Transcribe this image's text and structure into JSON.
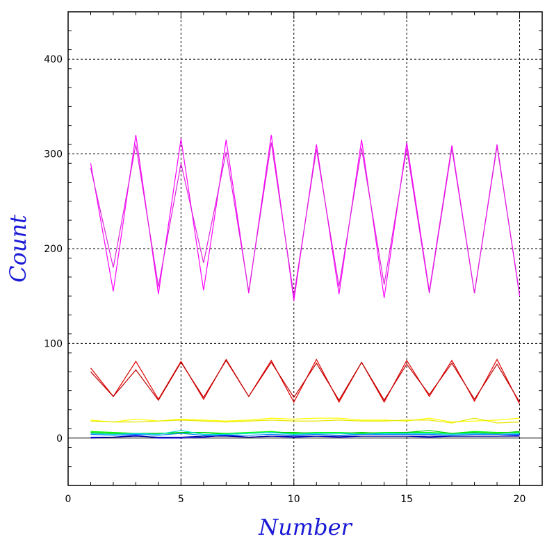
{
  "chart_data": {
    "type": "line",
    "title": "",
    "xlabel": "Number",
    "ylabel": "Count",
    "xlim": [
      0,
      21
    ],
    "ylim": [
      -50,
      450
    ],
    "x_ticks": [
      0,
      5,
      10,
      15,
      20
    ],
    "y_ticks": [
      0,
      100,
      200,
      300,
      400
    ],
    "x_tick_labels": [
      "0",
      "5",
      "10",
      "15",
      "20"
    ],
    "y_tick_labels": [
      "0",
      "100",
      "200",
      "300",
      "400"
    ],
    "grid": true,
    "zero_line": true,
    "x": [
      1,
      2,
      3,
      4,
      5,
      6,
      7,
      8,
      9,
      10,
      11,
      12,
      13,
      14,
      15,
      16,
      17,
      18,
      19,
      20
    ],
    "series": [
      {
        "color": "#ff00ff",
        "values": [
          290,
          155,
          320,
          152,
          316,
          156,
          315,
          153,
          320,
          145,
          310,
          152,
          315,
          148,
          312,
          155,
          309,
          153,
          310,
          150
        ]
      },
      {
        "color": "#dd22dd",
        "values": [
          285,
          180,
          310,
          160,
          290,
          185,
          302,
          155,
          312,
          150,
          305,
          160,
          306,
          162,
          306,
          153,
          306,
          153,
          308,
          152
        ]
      },
      {
        "color": "#e00000",
        "values": [
          74,
          44,
          81,
          41,
          81,
          41,
          83,
          44,
          82,
          38,
          83,
          38,
          80,
          38,
          82,
          44,
          82,
          39,
          83,
          36
        ]
      },
      {
        "color": "#c00000",
        "values": [
          70,
          44,
          72,
          40,
          80,
          43,
          82,
          44,
          80,
          43,
          79,
          40,
          80,
          40,
          78,
          46,
          79,
          41,
          78,
          38
        ]
      },
      {
        "color": "#ffff00",
        "values": [
          19,
          17,
          20,
          18,
          20,
          19,
          18,
          19,
          21,
          20,
          21,
          21,
          19,
          19,
          18,
          21,
          17,
          18,
          19,
          21
        ]
      },
      {
        "color": "#e6e600",
        "values": [
          18,
          17,
          17,
          18,
          19,
          18,
          17,
          18,
          19,
          18,
          18,
          19,
          18,
          18,
          19,
          19,
          16,
          21,
          16,
          17
        ]
      },
      {
        "color": "#00ff00",
        "values": [
          7,
          6,
          5,
          5,
          5,
          6,
          5,
          6,
          7,
          5,
          6,
          6,
          5,
          6,
          6,
          6,
          5,
          7,
          6,
          6
        ]
      },
      {
        "color": "#00cc00",
        "values": [
          6,
          5,
          5,
          5,
          6,
          6,
          4,
          5,
          6,
          6,
          5,
          5,
          6,
          5,
          6,
          8,
          5,
          6,
          5,
          7
        ]
      },
      {
        "color": "#00dddd",
        "values": [
          5,
          4,
          5,
          4,
          8,
          4,
          4,
          5,
          6,
          4,
          5,
          5,
          4,
          5,
          5,
          5,
          4,
          5,
          4,
          5
        ]
      },
      {
        "color": "#0088ff",
        "values": [
          4,
          3,
          4,
          3,
          5,
          3,
          3,
          3,
          4,
          3,
          4,
          3,
          4,
          4,
          4,
          4,
          3,
          4,
          4,
          4
        ]
      },
      {
        "color": "#0000ff",
        "values": [
          1,
          1,
          3,
          0,
          0,
          1,
          3,
          1,
          2,
          1,
          2,
          1,
          2,
          2,
          2,
          1,
          2,
          2,
          2,
          3
        ]
      },
      {
        "color": "#000099",
        "values": [
          0,
          1,
          2,
          1,
          1,
          2,
          2,
          1,
          2,
          2,
          2,
          2,
          2,
          2,
          2,
          2,
          2,
          2,
          2,
          2
        ]
      }
    ]
  }
}
